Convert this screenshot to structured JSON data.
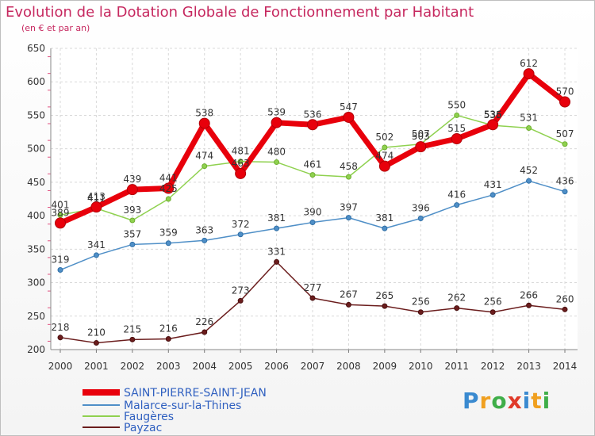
{
  "header": {
    "title": "Evolution de la Dotation Globale de Fonctionnement par Habitant",
    "subtitle": "(en € et par an)"
  },
  "logo": {
    "text": "Proxiti",
    "colors": [
      "#3a8ad0",
      "#f0a020",
      "#3fae49",
      "#e03a2a"
    ]
  },
  "chart_data": {
    "type": "line",
    "title": "Evolution de la Dotation Globale de Fonctionnement par Habitant",
    "subtitle": "(en € et par an)",
    "x": [
      "2000",
      "2001",
      "2002",
      "2003",
      "2004",
      "2005",
      "2006",
      "2007",
      "2008",
      "2009",
      "2010",
      "2011",
      "2012",
      "2013",
      "2014"
    ],
    "ylim": [
      200,
      650
    ],
    "yticks": [
      200,
      250,
      300,
      350,
      400,
      450,
      500,
      550,
      600,
      650
    ],
    "grid": true,
    "legend_position": "bottom-left",
    "series": [
      {
        "name": "SAINT-PIERRE-SAINT-JEAN",
        "color": "#e8000b",
        "values": [
          389,
          413,
          439,
          441,
          538,
          463,
          539,
          536,
          547,
          474,
          503,
          515,
          536,
          612,
          570
        ],
        "labels": [
          "389",
          "413",
          "439",
          "441",
          "538",
          "463",
          "539",
          "536",
          "547",
          "474",
          "503",
          "515",
          "536",
          "612",
          "570"
        ]
      },
      {
        "name": "Malarce-sur-la-Thines",
        "color": "#4f8fc7",
        "values": [
          319,
          341,
          357,
          359,
          363,
          372,
          381,
          390,
          397,
          381,
          396,
          416,
          431,
          452,
          436
        ],
        "labels": [
          "319",
          "341",
          "357",
          "359",
          "363",
          "372",
          "381",
          "390",
          "397",
          "381",
          "396",
          "416",
          "431",
          "452",
          "436"
        ]
      },
      {
        "name": "Faugères",
        "color": "#8fd14f",
        "values": [
          401,
          411,
          393,
          425,
          474,
          481,
          480,
          461,
          458,
          502,
          507,
          550,
          535,
          531,
          507
        ],
        "labels": [
          "401",
          "411",
          "393",
          "425",
          "474",
          "481",
          "480",
          "461",
          "458",
          "502",
          "507",
          "550",
          "535",
          "531",
          "507"
        ]
      },
      {
        "name": "Payzac",
        "color": "#6b1d1d",
        "values": [
          218,
          210,
          215,
          216,
          226,
          273,
          331,
          277,
          267,
          265,
          256,
          262,
          256,
          266,
          260
        ],
        "labels": [
          "218",
          "210",
          "215",
          "216",
          "226",
          "273",
          "331",
          "277",
          "267",
          "265",
          "256",
          "262",
          "256",
          "266",
          "260"
        ]
      }
    ]
  }
}
